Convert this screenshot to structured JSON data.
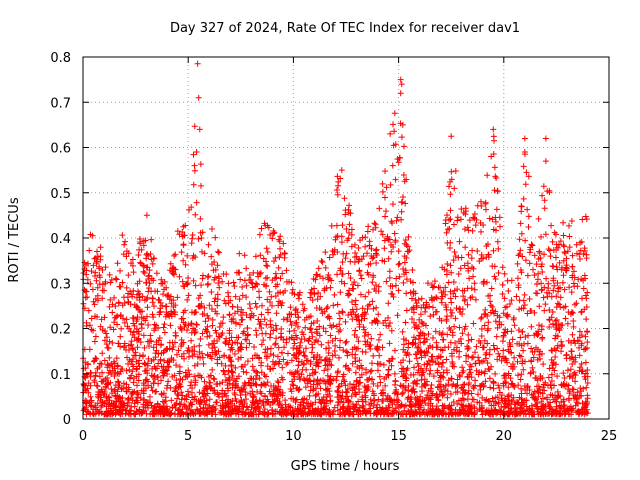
{
  "chart_data": {
    "type": "scatter",
    "title": "Day 327 of 2024, Rate Of TEC Index for receiver dav1",
    "xlabel": "GPS time / hours",
    "ylabel": "ROTI / TECUs",
    "xlim": [
      0,
      25
    ],
    "ylim": [
      0,
      0.8
    ],
    "xticks": [
      0,
      5,
      10,
      15,
      20,
      25
    ],
    "yticks": [
      0,
      0.1,
      0.2,
      0.3,
      0.4,
      0.5,
      0.6,
      0.7,
      0.8
    ],
    "xtick_labels": [
      "0",
      "5",
      "10",
      "15",
      "20",
      "25"
    ],
    "ytick_labels": [
      "0",
      "0.1",
      "0.2",
      "0.3",
      "0.4",
      "0.5",
      "0.6",
      "0.7",
      "0.8"
    ],
    "grid": true,
    "marker": "plus",
    "color": "#ff0000",
    "envelope": {
      "x": [
        0,
        0.5,
        1,
        1.5,
        2,
        2.5,
        3,
        3.5,
        4,
        4.5,
        5,
        5.2,
        5.5,
        5.8,
        6,
        6.5,
        7,
        7.5,
        8,
        8.5,
        9,
        9.5,
        10,
        10.5,
        11,
        11.5,
        12,
        12.5,
        13,
        13.5,
        14,
        14.5,
        15,
        15.3,
        15.6,
        16,
        16.5,
        17,
        17.5,
        18,
        18.5,
        19,
        19.5,
        20,
        20.5,
        21,
        21.5,
        22,
        22.5,
        23,
        23.5,
        24
      ],
      "y": [
        0.35,
        0.44,
        0.36,
        0.3,
        0.46,
        0.36,
        0.46,
        0.33,
        0.3,
        0.44,
        0.48,
        0.6,
        0.78,
        0.35,
        0.46,
        0.38,
        0.3,
        0.39,
        0.33,
        0.44,
        0.42,
        0.4,
        0.3,
        0.27,
        0.33,
        0.37,
        0.55,
        0.53,
        0.4,
        0.44,
        0.48,
        0.58,
        0.75,
        0.58,
        0.35,
        0.26,
        0.32,
        0.3,
        0.63,
        0.46,
        0.53,
        0.48,
        0.64,
        0.33,
        0.3,
        0.62,
        0.4,
        0.62,
        0.4,
        0.47,
        0.45,
        0.46
      ]
    },
    "outliers": [
      {
        "x": 5.45,
        "y": 0.785
      },
      {
        "x": 5.5,
        "y": 0.71
      },
      {
        "x": 5.55,
        "y": 0.64
      },
      {
        "x": 15.1,
        "y": 0.75
      },
      {
        "x": 15.15,
        "y": 0.74
      },
      {
        "x": 15.1,
        "y": 0.72
      },
      {
        "x": 15.2,
        "y": 0.65
      },
      {
        "x": 17.5,
        "y": 0.625
      },
      {
        "x": 19.5,
        "y": 0.64
      },
      {
        "x": 21.0,
        "y": 0.62
      },
      {
        "x": 22.0,
        "y": 0.62
      },
      {
        "x": 21.0,
        "y": 0.59
      },
      {
        "x": 22.0,
        "y": 0.57
      },
      {
        "x": 19.4,
        "y": 0.58
      },
      {
        "x": 14.6,
        "y": 0.63
      },
      {
        "x": 12.3,
        "y": 0.55
      },
      {
        "x": 5.4,
        "y": 0.59
      },
      {
        "x": 5.3,
        "y": 0.56
      }
    ]
  }
}
